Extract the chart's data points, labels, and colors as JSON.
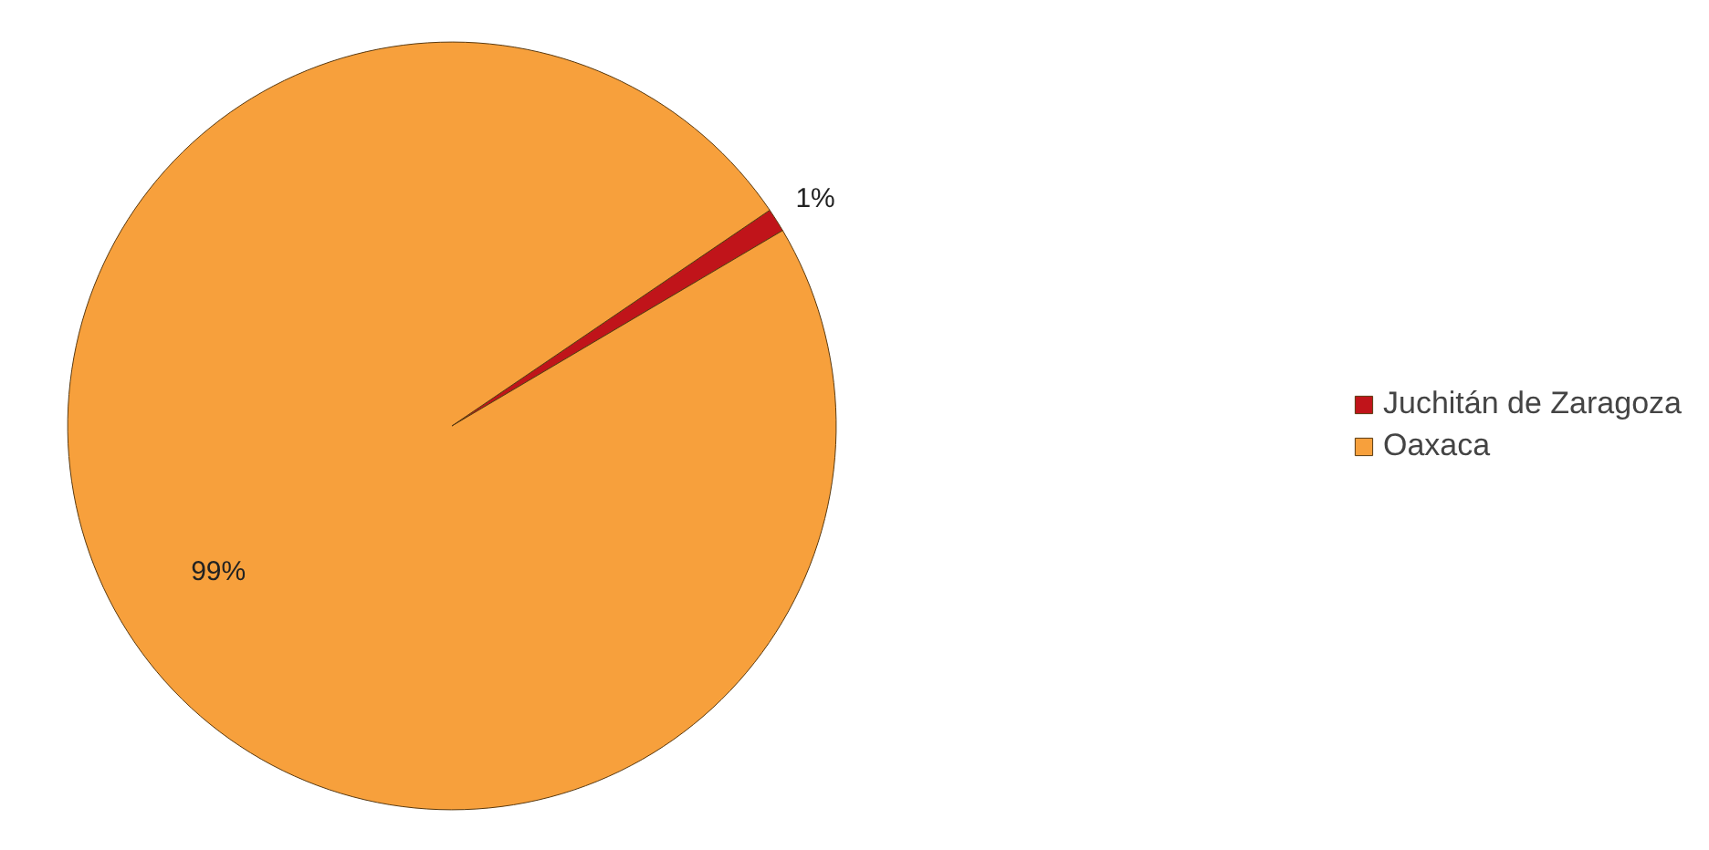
{
  "chart_data": {
    "type": "pie",
    "categories": [
      "Juchitán de Zaragoza",
      "Oaxaca"
    ],
    "values": [
      1,
      99
    ],
    "colors": [
      "#c0141a",
      "#f7a03c"
    ],
    "value_labels": [
      "1%",
      "99%"
    ],
    "legend": "right"
  }
}
